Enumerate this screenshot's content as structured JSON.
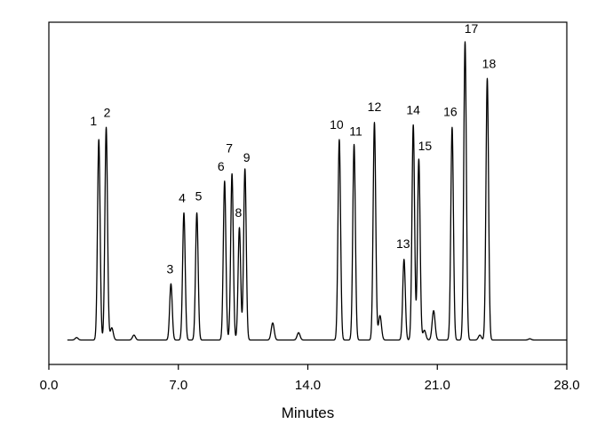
{
  "chart_data": {
    "type": "line",
    "title": "",
    "xlabel": "Minutes",
    "ylabel": "",
    "xlim": [
      0,
      28
    ],
    "ylim": [
      -0.1,
      1.3
    ],
    "grid": false,
    "legend": "none",
    "line_color": "#000000",
    "x_ticks": [
      0,
      7,
      14,
      21,
      28
    ],
    "x_tick_labels": [
      "0.0",
      "7.0",
      "14.0",
      "21.0",
      "28.0"
    ],
    "baseline": 0,
    "peaks": [
      {
        "label": "1",
        "x": 2.7,
        "y": 0.82
      },
      {
        "label": "2",
        "x": 3.1,
        "y": 0.87
      },
      {
        "label": "3",
        "x": 6.6,
        "y": 0.23
      },
      {
        "label": "4",
        "x": 7.3,
        "y": 0.52
      },
      {
        "label": "5",
        "x": 8.0,
        "y": 0.52
      },
      {
        "label": "6",
        "x": 9.5,
        "y": 0.65
      },
      {
        "label": "7",
        "x": 9.9,
        "y": 0.68
      },
      {
        "label": "8",
        "x": 10.3,
        "y": 0.46
      },
      {
        "label": "9",
        "x": 10.6,
        "y": 0.7
      },
      {
        "label": "10",
        "x": 15.7,
        "y": 0.82
      },
      {
        "label": "11",
        "x": 16.5,
        "y": 0.8
      },
      {
        "label": "12",
        "x": 17.6,
        "y": 0.89
      },
      {
        "label": "13",
        "x": 19.2,
        "y": 0.33
      },
      {
        "label": "14",
        "x": 19.7,
        "y": 0.88
      },
      {
        "label": "15",
        "x": 20.0,
        "y": 0.74
      },
      {
        "label": "16",
        "x": 21.8,
        "y": 0.87
      },
      {
        "label": "17",
        "x": 22.5,
        "y": 1.22
      },
      {
        "label": "18",
        "x": 23.7,
        "y": 1.07
      }
    ],
    "minor_peaks": [
      {
        "x": 1.5,
        "y": 0.01
      },
      {
        "x": 3.4,
        "y": 0.05
      },
      {
        "x": 4.6,
        "y": 0.02
      },
      {
        "x": 12.1,
        "y": 0.07
      },
      {
        "x": 13.5,
        "y": 0.03
      },
      {
        "x": 17.9,
        "y": 0.1
      },
      {
        "x": 20.3,
        "y": 0.04
      },
      {
        "x": 20.8,
        "y": 0.12
      },
      {
        "x": 23.3,
        "y": 0.02
      },
      {
        "x": 26.0,
        "y": 0.005
      }
    ]
  }
}
